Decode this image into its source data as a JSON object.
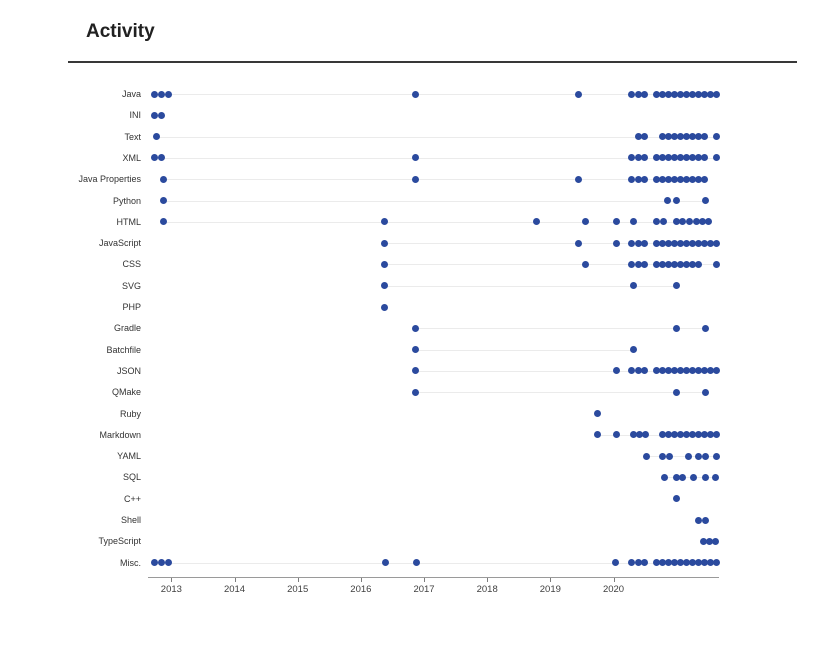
{
  "page": {
    "title": "Activity"
  },
  "chart_data": {
    "type": "scatter",
    "title": "Activity",
    "xlabel": "",
    "ylabel": "",
    "x_unit": "decimal_year",
    "grid": "per-row range line from first to last dot",
    "legend": null,
    "x_axis": {
      "min": 2012.63,
      "max": 2021.67,
      "ticks": [
        2013,
        2014,
        2015,
        2016,
        2017,
        2018,
        2019,
        2020
      ]
    },
    "colors": {
      "dot": "#2b4a9e",
      "row_line": "#ebebeb",
      "axis": "#9a9a9a",
      "tick": "#7d7d7d",
      "tick_label": "#3f3f3f",
      "row_label": "#333333"
    },
    "series": [
      {
        "name": "Java",
        "x": [
          2012.74,
          2012.85,
          2012.95,
          2016.87,
          2019.45,
          2020.29,
          2020.39,
          2020.49,
          2020.68,
          2020.78,
          2020.87,
          2020.97,
          2021.06,
          2021.16,
          2021.25,
          2021.35,
          2021.44,
          2021.54,
          2021.63
        ]
      },
      {
        "name": "INI",
        "x": [
          2012.74,
          2012.85
        ]
      },
      {
        "name": "Text",
        "x": [
          2012.77,
          2020.39,
          2020.49,
          2020.78,
          2020.87,
          2020.97,
          2021.06,
          2021.16,
          2021.25,
          2021.35,
          2021.44,
          2021.63
        ]
      },
      {
        "name": "XML",
        "x": [
          2012.74,
          2012.85,
          2016.87,
          2020.29,
          2020.39,
          2020.49,
          2020.68,
          2020.78,
          2020.87,
          2020.97,
          2021.06,
          2021.16,
          2021.25,
          2021.35,
          2021.44,
          2021.63
        ]
      },
      {
        "name": "Java Properties",
        "x": [
          2012.87,
          2016.87,
          2019.45,
          2020.29,
          2020.39,
          2020.49,
          2020.68,
          2020.78,
          2020.87,
          2020.97,
          2021.06,
          2021.16,
          2021.25,
          2021.35,
          2021.44
        ]
      },
      {
        "name": "Python",
        "x": [
          2012.87,
          2020.86,
          2020.99,
          2021.46
        ]
      },
      {
        "name": "HTML",
        "x": [
          2012.87,
          2016.38,
          2018.78,
          2019.56,
          2020.04,
          2020.31,
          2020.68,
          2020.79,
          2020.99,
          2021.1,
          2021.2,
          2021.31,
          2021.41,
          2021.5
        ]
      },
      {
        "name": "JavaScript",
        "x": [
          2016.38,
          2019.45,
          2020.04,
          2020.29,
          2020.39,
          2020.49,
          2020.68,
          2020.78,
          2020.87,
          2020.97,
          2021.06,
          2021.16,
          2021.25,
          2021.35,
          2021.44,
          2021.54,
          2021.63
        ]
      },
      {
        "name": "CSS",
        "x": [
          2016.38,
          2019.56,
          2020.29,
          2020.39,
          2020.49,
          2020.68,
          2020.78,
          2020.87,
          2020.97,
          2021.06,
          2021.16,
          2021.25,
          2021.35,
          2021.63
        ]
      },
      {
        "name": "SVG",
        "x": [
          2016.38,
          2020.31,
          2021.0
        ]
      },
      {
        "name": "PHP",
        "x": [
          2016.38
        ]
      },
      {
        "name": "Gradle",
        "x": [
          2016.87,
          2020.99,
          2021.46
        ]
      },
      {
        "name": "Batchfile",
        "x": [
          2016.87,
          2020.31
        ]
      },
      {
        "name": "JSON",
        "x": [
          2016.87,
          2020.04,
          2020.29,
          2020.39,
          2020.49,
          2020.68,
          2020.78,
          2020.87,
          2020.97,
          2021.06,
          2021.16,
          2021.25,
          2021.35,
          2021.44,
          2021.54,
          2021.63
        ]
      },
      {
        "name": "QMake",
        "x": [
          2016.87,
          2020.99,
          2021.46
        ]
      },
      {
        "name": "Ruby",
        "x": [
          2019.74
        ]
      },
      {
        "name": "Markdown",
        "x": [
          2019.74,
          2020.04,
          2020.31,
          2020.41,
          2020.51,
          2020.78,
          2020.87,
          2020.97,
          2021.06,
          2021.16,
          2021.25,
          2021.35,
          2021.44,
          2021.54,
          2021.63
        ]
      },
      {
        "name": "YAML",
        "x": [
          2020.52,
          2020.78,
          2020.89,
          2021.18,
          2021.34,
          2021.45,
          2021.63
        ]
      },
      {
        "name": "SQL",
        "x": [
          2020.8,
          2020.99,
          2021.1,
          2021.27,
          2021.45,
          2021.62
        ]
      },
      {
        "name": "C++",
        "x": [
          2020.99
        ]
      },
      {
        "name": "Shell",
        "x": [
          2021.35,
          2021.46
        ]
      },
      {
        "name": "TypeScript",
        "x": [
          2021.42,
          2021.52,
          2021.62
        ]
      },
      {
        "name": "Misc.",
        "x": [
          2012.74,
          2012.85,
          2012.95,
          2016.39,
          2016.88,
          2020.03,
          2020.29,
          2020.39,
          2020.49,
          2020.68,
          2020.78,
          2020.87,
          2020.97,
          2021.06,
          2021.16,
          2021.25,
          2021.35,
          2021.44,
          2021.54,
          2021.63
        ]
      }
    ]
  }
}
